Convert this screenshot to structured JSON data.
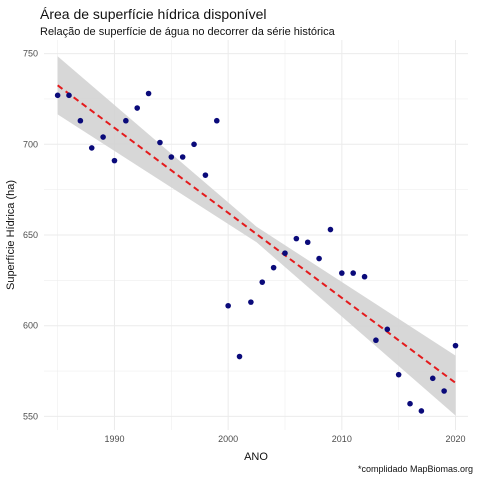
{
  "chart_data": {
    "type": "scatter",
    "title": "Área de superfície hídrica disponível",
    "subtitle": "Relação de superfície de água no decorrer da série histórica",
    "xlabel": "ANO",
    "ylabel": "Superfície Hídrica (ha)",
    "caption": "*complidado MapBiomas.org",
    "xlim": [
      1983.8,
      2021.1
    ],
    "ylim": [
      542.5,
      757.5
    ],
    "xticks": [
      1990,
      2000,
      2010,
      2020
    ],
    "xtick_labels": [
      "1990",
      "2000",
      "2010",
      "2020"
    ],
    "yticks": [
      550,
      600,
      650,
      700,
      750
    ],
    "ytick_labels": [
      "550",
      "600",
      "650",
      "700",
      "750"
    ],
    "grid": true,
    "points": [
      {
        "x": 1985,
        "y": 727
      },
      {
        "x": 1986,
        "y": 727
      },
      {
        "x": 1987,
        "y": 713
      },
      {
        "x": 1988,
        "y": 698
      },
      {
        "x": 1989,
        "y": 704
      },
      {
        "x": 1990,
        "y": 691
      },
      {
        "x": 1991,
        "y": 713
      },
      {
        "x": 1992,
        "y": 720
      },
      {
        "x": 1993,
        "y": 728
      },
      {
        "x": 1994,
        "y": 701
      },
      {
        "x": 1995,
        "y": 693
      },
      {
        "x": 1996,
        "y": 693
      },
      {
        "x": 1997,
        "y": 700
      },
      {
        "x": 1998,
        "y": 683
      },
      {
        "x": 1999,
        "y": 713
      },
      {
        "x": 2000,
        "y": 611
      },
      {
        "x": 2001,
        "y": 583
      },
      {
        "x": 2002,
        "y": 613
      },
      {
        "x": 2003,
        "y": 624
      },
      {
        "x": 2004,
        "y": 632
      },
      {
        "x": 2005,
        "y": 640
      },
      {
        "x": 2006,
        "y": 648
      },
      {
        "x": 2007,
        "y": 646
      },
      {
        "x": 2008,
        "y": 637
      },
      {
        "x": 2009,
        "y": 653
      },
      {
        "x": 2010,
        "y": 629
      },
      {
        "x": 2011,
        "y": 629
      },
      {
        "x": 2012,
        "y": 627
      },
      {
        "x": 2013,
        "y": 592
      },
      {
        "x": 2014,
        "y": 598
      },
      {
        "x": 2015,
        "y": 573
      },
      {
        "x": 2016,
        "y": 557
      },
      {
        "x": 2017,
        "y": 553
      },
      {
        "x": 2018,
        "y": 571
      },
      {
        "x": 2019,
        "y": 564
      },
      {
        "x": 2020,
        "y": 589
      }
    ],
    "trend": {
      "x": [
        1985,
        2020
      ],
      "y": [
        732.5,
        568.5
      ],
      "ci_lower": [
        716.5,
        550.5
      ],
      "ci_upper": [
        748.5,
        583.5
      ],
      "ci_mid_lower": 646.0,
      "ci_mid_upper": 654.5
    },
    "colors": {
      "points": "#0a0a7a",
      "trend": "#e41a1c",
      "ci_band": "#d3d3d3",
      "grid": "#ebebeb",
      "axis_text": "#4d4d4d"
    }
  }
}
